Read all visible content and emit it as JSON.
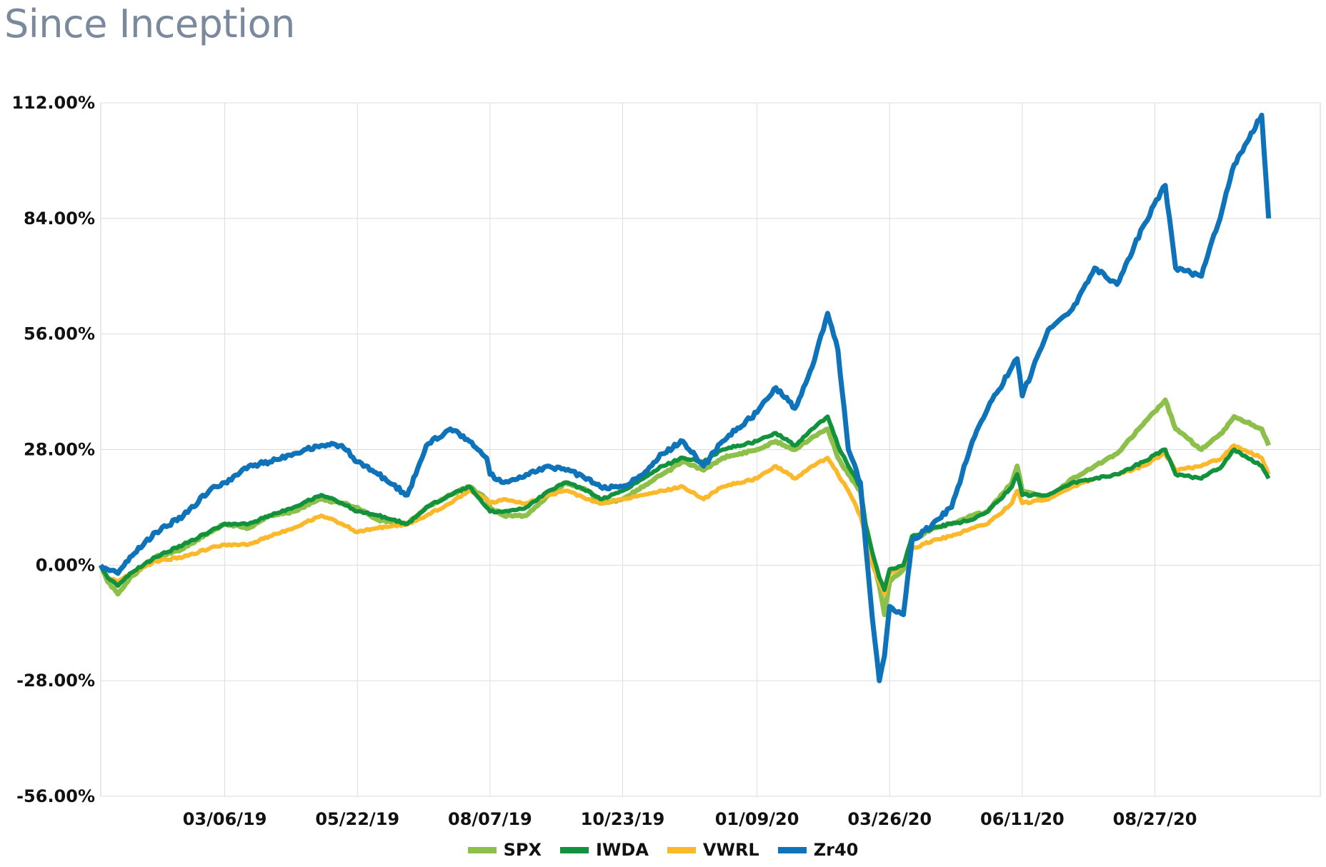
{
  "title": "Since Inception",
  "colors": {
    "SPX": "#8cc04a",
    "IWDA": "#12923c",
    "VWRL": "#fbb829",
    "Zr40": "#0e73b9",
    "grid": "#dddddd"
  },
  "chart_data": {
    "type": "line",
    "title": "Since Inception",
    "xlabel": "",
    "ylabel": "",
    "ylim": [
      -56,
      112
    ],
    "yticks": [
      112,
      84,
      56,
      28,
      0,
      -28,
      -56
    ],
    "ytick_labels": [
      "112.00%",
      "84.00%",
      "56.00%",
      "28.00%",
      "0.00%",
      "-28.00%",
      "-56.00%"
    ],
    "xlim": [
      "2018-12-24",
      "2020-12-01"
    ],
    "xtick_labels": [
      "03/06/19",
      "05/22/19",
      "08/07/19",
      "10/23/19",
      "01/09/20",
      "03/26/20",
      "06/11/20",
      "08/27/20"
    ],
    "xtick_dates": [
      "2019-03-06",
      "2019-05-22",
      "2019-08-07",
      "2019-10-23",
      "2020-01-09",
      "2020-03-26",
      "2020-06-11",
      "2020-08-27"
    ],
    "legend_position": "bottom",
    "grid": true,
    "series": [
      {
        "name": "SPX",
        "points": [
          [
            "2018-12-24",
            0
          ],
          [
            "2018-12-28",
            -4
          ],
          [
            "2019-01-03",
            -7
          ],
          [
            "2019-01-10",
            -3
          ],
          [
            "2019-01-25",
            2
          ],
          [
            "2019-02-10",
            4
          ],
          [
            "2019-02-25",
            8
          ],
          [
            "2019-03-06",
            10
          ],
          [
            "2019-03-20",
            9
          ],
          [
            "2019-04-01",
            12
          ],
          [
            "2019-04-15",
            13
          ],
          [
            "2019-05-01",
            16
          ],
          [
            "2019-05-13",
            15
          ],
          [
            "2019-05-22",
            14
          ],
          [
            "2019-06-03",
            11
          ],
          [
            "2019-06-20",
            10
          ],
          [
            "2019-07-01",
            14
          ],
          [
            "2019-07-15",
            17
          ],
          [
            "2019-07-26",
            19
          ],
          [
            "2019-08-05",
            16
          ],
          [
            "2019-08-07",
            14
          ],
          [
            "2019-08-15",
            12
          ],
          [
            "2019-08-28",
            12
          ],
          [
            "2019-09-10",
            17
          ],
          [
            "2019-09-20",
            20
          ],
          [
            "2019-10-03",
            18
          ],
          [
            "2019-10-10",
            15
          ],
          [
            "2019-10-23",
            16
          ],
          [
            "2019-11-04",
            19
          ],
          [
            "2019-11-15",
            22
          ],
          [
            "2019-11-27",
            25
          ],
          [
            "2019-12-09",
            23
          ],
          [
            "2019-12-20",
            26
          ],
          [
            "2020-01-09",
            28
          ],
          [
            "2020-01-20",
            30
          ],
          [
            "2020-01-31",
            28
          ],
          [
            "2020-02-10",
            31
          ],
          [
            "2020-02-19",
            33
          ],
          [
            "2020-02-25",
            26
          ],
          [
            "2020-03-02",
            22
          ],
          [
            "2020-03-09",
            18
          ],
          [
            "2020-03-12",
            9
          ],
          [
            "2020-03-16",
            2
          ],
          [
            "2020-03-20",
            -5
          ],
          [
            "2020-03-23",
            -12
          ],
          [
            "2020-03-26",
            -4
          ],
          [
            "2020-04-03",
            -1
          ],
          [
            "2020-04-08",
            6
          ],
          [
            "2020-04-20",
            9
          ],
          [
            "2020-05-01",
            10
          ],
          [
            "2020-05-13",
            12
          ],
          [
            "2020-05-22",
            13
          ],
          [
            "2020-06-05",
            20
          ],
          [
            "2020-06-08",
            24
          ],
          [
            "2020-06-11",
            18
          ],
          [
            "2020-06-26",
            16
          ],
          [
            "2020-07-10",
            21
          ],
          [
            "2020-07-23",
            24
          ],
          [
            "2020-08-05",
            27
          ],
          [
            "2020-08-20",
            34
          ],
          [
            "2020-09-02",
            40
          ],
          [
            "2020-09-08",
            33
          ],
          [
            "2020-09-23",
            28
          ],
          [
            "2020-10-05",
            32
          ],
          [
            "2020-10-12",
            36
          ],
          [
            "2020-10-28",
            33
          ],
          [
            "2020-11-01",
            29
          ]
        ]
      },
      {
        "name": "IWDA",
        "points": [
          [
            "2018-12-24",
            0
          ],
          [
            "2018-12-28",
            -3
          ],
          [
            "2019-01-03",
            -5
          ],
          [
            "2019-01-10",
            -2
          ],
          [
            "2019-01-25",
            2
          ],
          [
            "2019-02-10",
            5
          ],
          [
            "2019-02-25",
            8
          ],
          [
            "2019-03-06",
            10
          ],
          [
            "2019-03-20",
            10
          ],
          [
            "2019-04-01",
            12
          ],
          [
            "2019-04-15",
            14
          ],
          [
            "2019-05-01",
            17
          ],
          [
            "2019-05-13",
            15
          ],
          [
            "2019-05-22",
            13
          ],
          [
            "2019-06-03",
            12
          ],
          [
            "2019-06-20",
            10
          ],
          [
            "2019-07-01",
            14
          ],
          [
            "2019-07-15",
            17
          ],
          [
            "2019-07-26",
            19
          ],
          [
            "2019-08-05",
            14
          ],
          [
            "2019-08-07",
            13
          ],
          [
            "2019-08-15",
            13
          ],
          [
            "2019-08-28",
            14
          ],
          [
            "2019-09-10",
            18
          ],
          [
            "2019-09-20",
            20
          ],
          [
            "2019-10-03",
            18
          ],
          [
            "2019-10-10",
            16
          ],
          [
            "2019-10-23",
            18
          ],
          [
            "2019-11-04",
            21
          ],
          [
            "2019-11-15",
            24
          ],
          [
            "2019-11-27",
            26
          ],
          [
            "2019-12-09",
            25
          ],
          [
            "2019-12-20",
            28
          ],
          [
            "2020-01-09",
            30
          ],
          [
            "2020-01-20",
            32
          ],
          [
            "2020-01-31",
            29
          ],
          [
            "2020-02-10",
            33
          ],
          [
            "2020-02-19",
            36
          ],
          [
            "2020-02-25",
            29
          ],
          [
            "2020-03-02",
            24
          ],
          [
            "2020-03-09",
            19
          ],
          [
            "2020-03-12",
            10
          ],
          [
            "2020-03-16",
            3
          ],
          [
            "2020-03-20",
            -3
          ],
          [
            "2020-03-23",
            -6
          ],
          [
            "2020-03-26",
            -1
          ],
          [
            "2020-04-03",
            0
          ],
          [
            "2020-04-08",
            7
          ],
          [
            "2020-04-20",
            9
          ],
          [
            "2020-05-01",
            10
          ],
          [
            "2020-05-13",
            11
          ],
          [
            "2020-05-22",
            13
          ],
          [
            "2020-06-05",
            19
          ],
          [
            "2020-06-08",
            22
          ],
          [
            "2020-06-11",
            17
          ],
          [
            "2020-06-26",
            17
          ],
          [
            "2020-07-10",
            20
          ],
          [
            "2020-07-23",
            21
          ],
          [
            "2020-08-05",
            22
          ],
          [
            "2020-08-20",
            25
          ],
          [
            "2020-09-02",
            28
          ],
          [
            "2020-09-08",
            22
          ],
          [
            "2020-09-23",
            21
          ],
          [
            "2020-10-05",
            24
          ],
          [
            "2020-10-12",
            28
          ],
          [
            "2020-10-28",
            24
          ],
          [
            "2020-11-01",
            21
          ]
        ]
      },
      {
        "name": "VWRL",
        "points": [
          [
            "2018-12-24",
            0
          ],
          [
            "2018-12-28",
            -3
          ],
          [
            "2019-01-03",
            -4
          ],
          [
            "2019-01-10",
            -2
          ],
          [
            "2019-01-25",
            1
          ],
          [
            "2019-02-10",
            2
          ],
          [
            "2019-02-25",
            4
          ],
          [
            "2019-03-06",
            5
          ],
          [
            "2019-03-20",
            5
          ],
          [
            "2019-04-01",
            7
          ],
          [
            "2019-04-15",
            9
          ],
          [
            "2019-05-01",
            12
          ],
          [
            "2019-05-13",
            10
          ],
          [
            "2019-05-22",
            8
          ],
          [
            "2019-06-03",
            9
          ],
          [
            "2019-06-20",
            10
          ],
          [
            "2019-07-01",
            12
          ],
          [
            "2019-07-15",
            15
          ],
          [
            "2019-07-26",
            18
          ],
          [
            "2019-08-05",
            16
          ],
          [
            "2019-08-07",
            15
          ],
          [
            "2019-08-15",
            16
          ],
          [
            "2019-08-28",
            15
          ],
          [
            "2019-09-10",
            17
          ],
          [
            "2019-09-20",
            18
          ],
          [
            "2019-10-03",
            16
          ],
          [
            "2019-10-10",
            15
          ],
          [
            "2019-10-23",
            16
          ],
          [
            "2019-11-04",
            17
          ],
          [
            "2019-11-15",
            18
          ],
          [
            "2019-11-27",
            19
          ],
          [
            "2019-12-09",
            16
          ],
          [
            "2019-12-20",
            19
          ],
          [
            "2020-01-09",
            21
          ],
          [
            "2020-01-20",
            24
          ],
          [
            "2020-01-31",
            21
          ],
          [
            "2020-02-10",
            24
          ],
          [
            "2020-02-19",
            26
          ],
          [
            "2020-02-25",
            22
          ],
          [
            "2020-03-02",
            18
          ],
          [
            "2020-03-09",
            12
          ],
          [
            "2020-03-12",
            7
          ],
          [
            "2020-03-16",
            0
          ],
          [
            "2020-03-20",
            -4
          ],
          [
            "2020-03-23",
            -7
          ],
          [
            "2020-03-26",
            -2
          ],
          [
            "2020-04-03",
            0
          ],
          [
            "2020-04-08",
            4
          ],
          [
            "2020-04-20",
            6
          ],
          [
            "2020-05-01",
            7
          ],
          [
            "2020-05-13",
            9
          ],
          [
            "2020-05-22",
            10
          ],
          [
            "2020-06-05",
            15
          ],
          [
            "2020-06-08",
            18
          ],
          [
            "2020-06-11",
            15
          ],
          [
            "2020-06-26",
            16
          ],
          [
            "2020-07-10",
            19
          ],
          [
            "2020-07-23",
            21
          ],
          [
            "2020-08-05",
            22
          ],
          [
            "2020-08-20",
            24
          ],
          [
            "2020-09-02",
            27
          ],
          [
            "2020-09-08",
            23
          ],
          [
            "2020-09-23",
            24
          ],
          [
            "2020-10-05",
            26
          ],
          [
            "2020-10-12",
            29
          ],
          [
            "2020-10-28",
            26
          ],
          [
            "2020-11-01",
            22
          ]
        ]
      },
      {
        "name": "Zr40",
        "points": [
          [
            "2018-12-24",
            0
          ],
          [
            "2018-12-28",
            -1
          ],
          [
            "2019-01-03",
            -2
          ],
          [
            "2019-01-10",
            2
          ],
          [
            "2019-01-25",
            8
          ],
          [
            "2019-02-10",
            12
          ],
          [
            "2019-02-25",
            18
          ],
          [
            "2019-03-06",
            20
          ],
          [
            "2019-03-20",
            24
          ],
          [
            "2019-04-01",
            25
          ],
          [
            "2019-04-15",
            27
          ],
          [
            "2019-05-01",
            29
          ],
          [
            "2019-05-13",
            29
          ],
          [
            "2019-05-22",
            25
          ],
          [
            "2019-06-03",
            22
          ],
          [
            "2019-06-20",
            17
          ],
          [
            "2019-07-01",
            29
          ],
          [
            "2019-07-15",
            33
          ],
          [
            "2019-07-26",
            30
          ],
          [
            "2019-08-05",
            26
          ],
          [
            "2019-08-07",
            22
          ],
          [
            "2019-08-15",
            20
          ],
          [
            "2019-08-28",
            22
          ],
          [
            "2019-09-10",
            24
          ],
          [
            "2019-09-20",
            23
          ],
          [
            "2019-10-03",
            21
          ],
          [
            "2019-10-10",
            19
          ],
          [
            "2019-10-23",
            19
          ],
          [
            "2019-11-04",
            22
          ],
          [
            "2019-11-15",
            27
          ],
          [
            "2019-11-27",
            30
          ],
          [
            "2019-12-09",
            24
          ],
          [
            "2019-12-20",
            30
          ],
          [
            "2020-01-09",
            37
          ],
          [
            "2020-01-20",
            43
          ],
          [
            "2020-01-31",
            38
          ],
          [
            "2020-02-10",
            48
          ],
          [
            "2020-02-19",
            61
          ],
          [
            "2020-02-25",
            52
          ],
          [
            "2020-03-02",
            28
          ],
          [
            "2020-03-09",
            20
          ],
          [
            "2020-03-12",
            5
          ],
          [
            "2020-03-16",
            -13
          ],
          [
            "2020-03-20",
            -28
          ],
          [
            "2020-03-23",
            -22
          ],
          [
            "2020-03-26",
            -10
          ],
          [
            "2020-04-03",
            -12
          ],
          [
            "2020-04-08",
            6
          ],
          [
            "2020-04-20",
            10
          ],
          [
            "2020-05-01",
            14
          ],
          [
            "2020-05-13",
            30
          ],
          [
            "2020-05-22",
            38
          ],
          [
            "2020-06-05",
            48
          ],
          [
            "2020-06-08",
            50
          ],
          [
            "2020-06-11",
            41
          ],
          [
            "2020-06-26",
            57
          ],
          [
            "2020-07-10",
            62
          ],
          [
            "2020-07-23",
            72
          ],
          [
            "2020-08-05",
            68
          ],
          [
            "2020-08-20",
            82
          ],
          [
            "2020-09-02",
            92
          ],
          [
            "2020-09-08",
            72
          ],
          [
            "2020-09-23",
            70
          ],
          [
            "2020-10-05",
            86
          ],
          [
            "2020-10-12",
            97
          ],
          [
            "2020-10-28",
            109
          ],
          [
            "2020-11-01",
            84
          ]
        ]
      }
    ]
  }
}
